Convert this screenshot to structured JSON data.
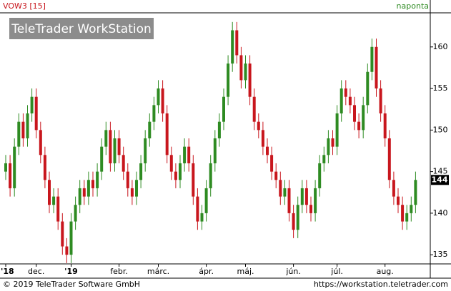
{
  "chart_data": {
    "type": "candlestick",
    "title": "VOW3 [15]",
    "interval": "naponta",
    "watermark": "TeleTrader WorkStation",
    "categories": [
      "'18",
      null,
      null,
      null,
      null,
      null,
      null,
      "dec.",
      null,
      null,
      null,
      null,
      null,
      null,
      null,
      "'19",
      null,
      null,
      null,
      null,
      null,
      null,
      null,
      null,
      null,
      null,
      "febr.",
      null,
      null,
      null,
      null,
      null,
      null,
      null,
      null,
      "márc.",
      null,
      null,
      null,
      null,
      null,
      null,
      null,
      null,
      null,
      null,
      "ápr.",
      null,
      null,
      null,
      null,
      null,
      null,
      null,
      null,
      "máj.",
      null,
      null,
      null,
      null,
      null,
      null,
      null,
      null,
      null,
      null,
      "jún.",
      null,
      null,
      null,
      null,
      null,
      null,
      null,
      null,
      null,
      "júl.",
      null,
      null,
      null,
      null,
      null,
      null,
      null,
      null,
      null,
      null,
      "aug.",
      null,
      null,
      null,
      null,
      null,
      null,
      null
    ],
    "open": [
      145,
      146,
      143,
      148,
      151,
      149,
      152,
      154,
      150,
      147,
      144,
      141,
      142,
      139,
      136,
      135,
      139,
      141,
      143,
      142,
      144,
      143,
      145,
      148,
      150,
      146,
      149,
      147,
      145,
      143,
      142,
      144,
      146,
      149,
      151,
      153,
      155,
      152,
      147,
      145,
      144,
      146,
      148,
      146,
      142,
      139,
      140,
      143,
      146,
      149,
      151,
      154,
      158,
      162,
      159,
      156,
      158,
      154,
      151,
      150,
      148,
      147,
      145,
      144,
      142,
      143,
      140,
      138,
      141,
      143,
      141,
      140,
      143,
      146,
      147,
      149,
      148,
      152,
      155,
      154,
      153,
      151,
      150,
      153,
      157,
      160,
      155,
      152,
      149,
      144,
      142,
      141,
      139,
      140,
      141
    ],
    "high": [
      147,
      147,
      149,
      152,
      152,
      153,
      155,
      155,
      151,
      148,
      145,
      143,
      143,
      140,
      137,
      140,
      142,
      144,
      144,
      145,
      145,
      146,
      149,
      151,
      151,
      150,
      150,
      148,
      146,
      144,
      145,
      147,
      150,
      152,
      154,
      156,
      156,
      153,
      148,
      146,
      147,
      149,
      149,
      147,
      143,
      141,
      144,
      147,
      150,
      152,
      155,
      159,
      163,
      163,
      160,
      159,
      159,
      155,
      152,
      151,
      149,
      148,
      146,
      145,
      144,
      144,
      141,
      142,
      144,
      144,
      142,
      144,
      147,
      148,
      150,
      150,
      153,
      156,
      156,
      155,
      154,
      152,
      154,
      158,
      161,
      161,
      156,
      153,
      150,
      145,
      143,
      142,
      141,
      142,
      145
    ],
    "low": [
      144,
      142,
      142,
      147,
      148,
      148,
      151,
      149,
      146,
      143,
      140,
      140,
      138,
      135,
      134,
      134,
      138,
      140,
      141,
      141,
      142,
      142,
      144,
      147,
      145,
      145,
      146,
      144,
      142,
      141,
      141,
      143,
      145,
      148,
      150,
      152,
      151,
      146,
      144,
      143,
      143,
      145,
      145,
      141,
      138,
      138,
      139,
      142,
      145,
      148,
      150,
      153,
      157,
      158,
      155,
      155,
      153,
      150,
      149,
      147,
      146,
      144,
      143,
      141,
      141,
      139,
      137,
      137,
      140,
      140,
      139,
      139,
      142,
      145,
      146,
      147,
      147,
      151,
      153,
      152,
      150,
      149,
      149,
      152,
      156,
      154,
      151,
      148,
      143,
      141,
      140,
      138,
      138,
      139,
      140
    ],
    "close": [
      146,
      143,
      148,
      151,
      149,
      152,
      154,
      150,
      147,
      144,
      141,
      142,
      139,
      136,
      135,
      139,
      141,
      143,
      142,
      144,
      143,
      145,
      148,
      150,
      146,
      149,
      147,
      145,
      143,
      142,
      144,
      146,
      149,
      151,
      153,
      155,
      152,
      147,
      145,
      144,
      146,
      148,
      146,
      142,
      139,
      140,
      143,
      146,
      149,
      151,
      154,
      158,
      162,
      159,
      156,
      158,
      154,
      151,
      150,
      148,
      147,
      145,
      144,
      142,
      143,
      140,
      138,
      141,
      143,
      141,
      140,
      143,
      146,
      147,
      149,
      148,
      152,
      155,
      154,
      153,
      151,
      150,
      153,
      157,
      160,
      155,
      152,
      149,
      144,
      142,
      141,
      139,
      140,
      141,
      144
    ],
    "up_color": "#2e8b22",
    "down_color": "#c8161d",
    "ylim": [
      133.9,
      164.1
    ],
    "yticks": [
      135,
      140,
      145,
      150,
      155,
      160
    ]
  },
  "footer": {
    "copyright": "© 2019 TeleTrader Software GmbH",
    "url": "https://workstation.teletrader.com"
  }
}
